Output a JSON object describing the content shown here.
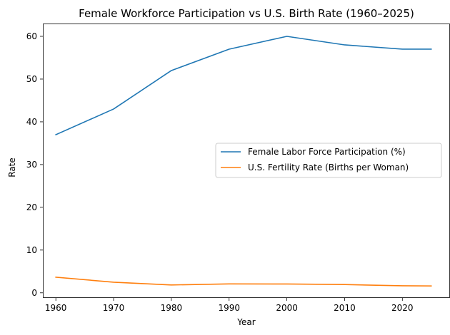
{
  "chart_data": {
    "type": "line",
    "title": "Female Workforce Participation vs U.S. Birth Rate (1960–2025)",
    "xlabel": "Year",
    "ylabel": "Rate",
    "x": [
      1960,
      1970,
      1980,
      1990,
      2000,
      2010,
      2020,
      2025
    ],
    "xlim": [
      1957.75,
      2028.25
    ],
    "ylim": [
      -1.2,
      63
    ],
    "xticks": [
      1960,
      1970,
      1980,
      1990,
      2000,
      2010,
      2020
    ],
    "yticks": [
      0,
      10,
      20,
      30,
      40,
      50,
      60
    ],
    "grid": false,
    "legend_position": "center-right",
    "series": [
      {
        "name": "Female Labor Force Participation (%)",
        "color": "#1f77b4",
        "values": [
          37,
          43,
          52,
          57,
          60,
          58,
          57,
          57
        ]
      },
      {
        "name": "U.S. Fertility Rate (Births per Woman)",
        "color": "#ff7f0e",
        "values": [
          3.65,
          2.48,
          1.84,
          2.08,
          2.06,
          1.93,
          1.64,
          1.6
        ]
      }
    ]
  }
}
